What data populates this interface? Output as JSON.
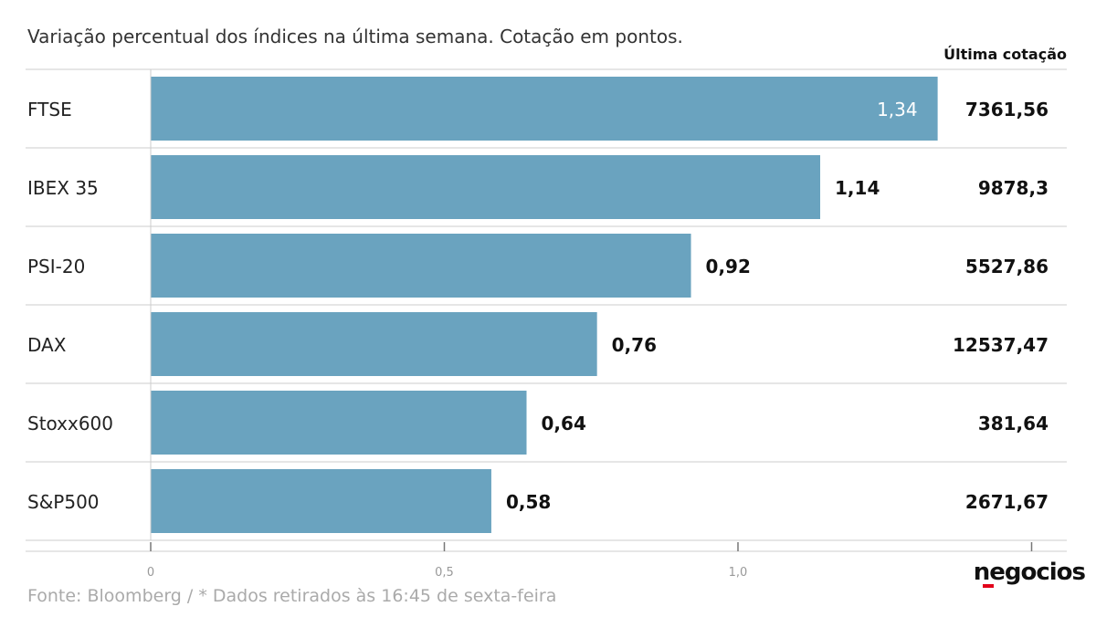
{
  "subtitle": "Variação percentual dos índices na última semana. Cotação em pontos.",
  "column_header": "Última cotação",
  "source": "Fonte: Bloomberg / * Dados retirados às 16:45 de sexta-feira",
  "logo": "negocios",
  "colors": {
    "bar": "#6aa3bf",
    "bar_label_inside": "#ffffff",
    "bar_label_outside": "#111111",
    "gridline": "#cccccc",
    "axis_text": "#999999"
  },
  "chart_data": {
    "type": "bar",
    "orientation": "horizontal",
    "categories": [
      "FTSE",
      "IBEX 35",
      "PSI-20",
      "DAX",
      "Stoxx600",
      "S&P500"
    ],
    "values": [
      1.34,
      1.14,
      0.92,
      0.76,
      0.64,
      0.58
    ],
    "value_labels": [
      "1,34",
      "1,14",
      "0,92",
      "0,76",
      "0,64",
      "0,58"
    ],
    "last_quote": [
      "7361,56",
      "9878,3",
      "5527,86",
      "12537,47",
      "381,64",
      "2671,67"
    ],
    "x_ticks": [
      0,
      0.5,
      1.0,
      1.5
    ],
    "x_tick_labels": [
      "0",
      "0,5",
      "1,0",
      ""
    ],
    "xlim": [
      0,
      1.5
    ],
    "legend": "none",
    "grid": true
  }
}
